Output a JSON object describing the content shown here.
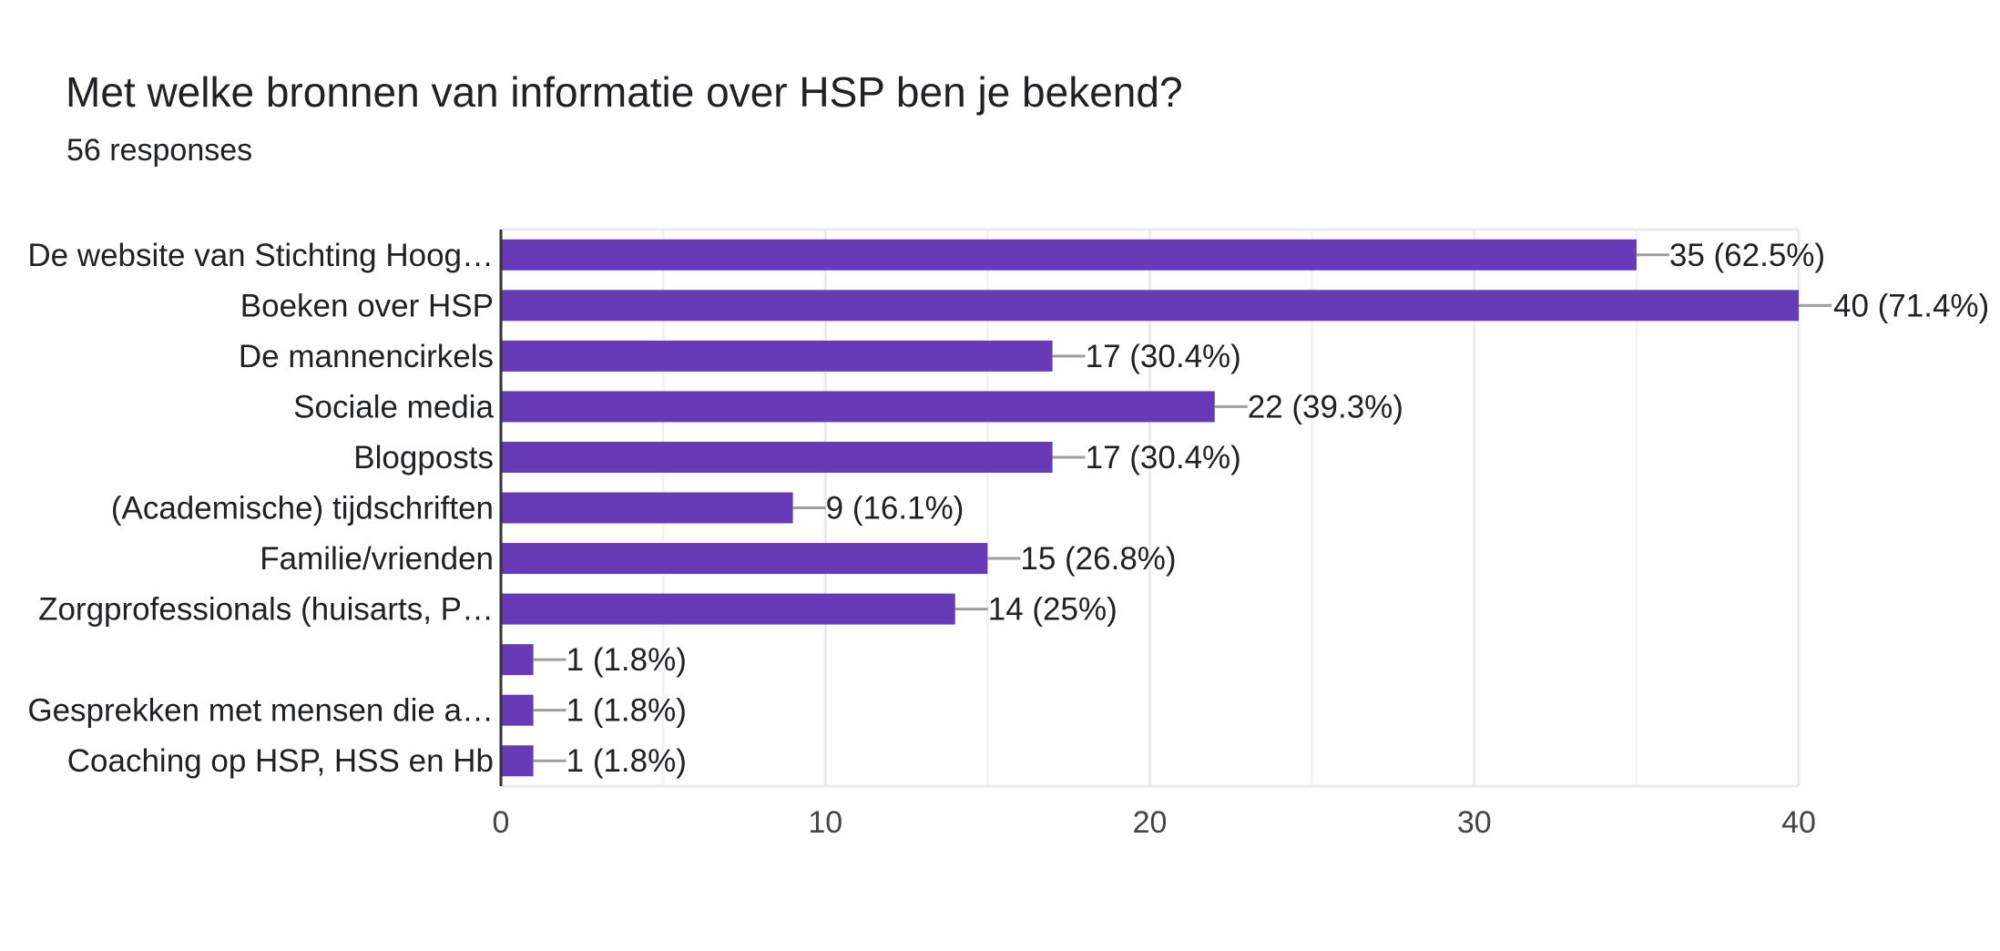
{
  "title": "Met welke bronnen van informatie over HSP ben je bekend?",
  "subtitle": "56 responses",
  "chart_data": {
    "type": "bar",
    "orientation": "horizontal",
    "categories": [
      "De website van Stichting Hoog…",
      "Boeken over HSP",
      "De mannencirkels",
      "Sociale media",
      "Blogposts",
      "(Academische) tijdschriften",
      "Familie/vrienden",
      "Zorgprofessionals (huisarts, P…",
      "",
      "Gesprekken met mensen die a…",
      "Coaching op HSP, HSS en Hb"
    ],
    "values": [
      35,
      40,
      17,
      22,
      17,
      9,
      15,
      14,
      1,
      1,
      1
    ],
    "data_labels": [
      "35 (62.5%)",
      "40 (71.4%)",
      "17 (30.4%)",
      "22 (39.3%)",
      "17 (30.4%)",
      "9 (16.1%)",
      "15 (26.8%)",
      "14 (25%)",
      "1 (1.8%)",
      "1 (1.8%)",
      "1 (1.8%)"
    ],
    "xlim": [
      0,
      40
    ],
    "xticks": [
      0,
      10,
      20,
      30,
      40
    ],
    "grid": true,
    "bar_color": "#673ab7"
  }
}
